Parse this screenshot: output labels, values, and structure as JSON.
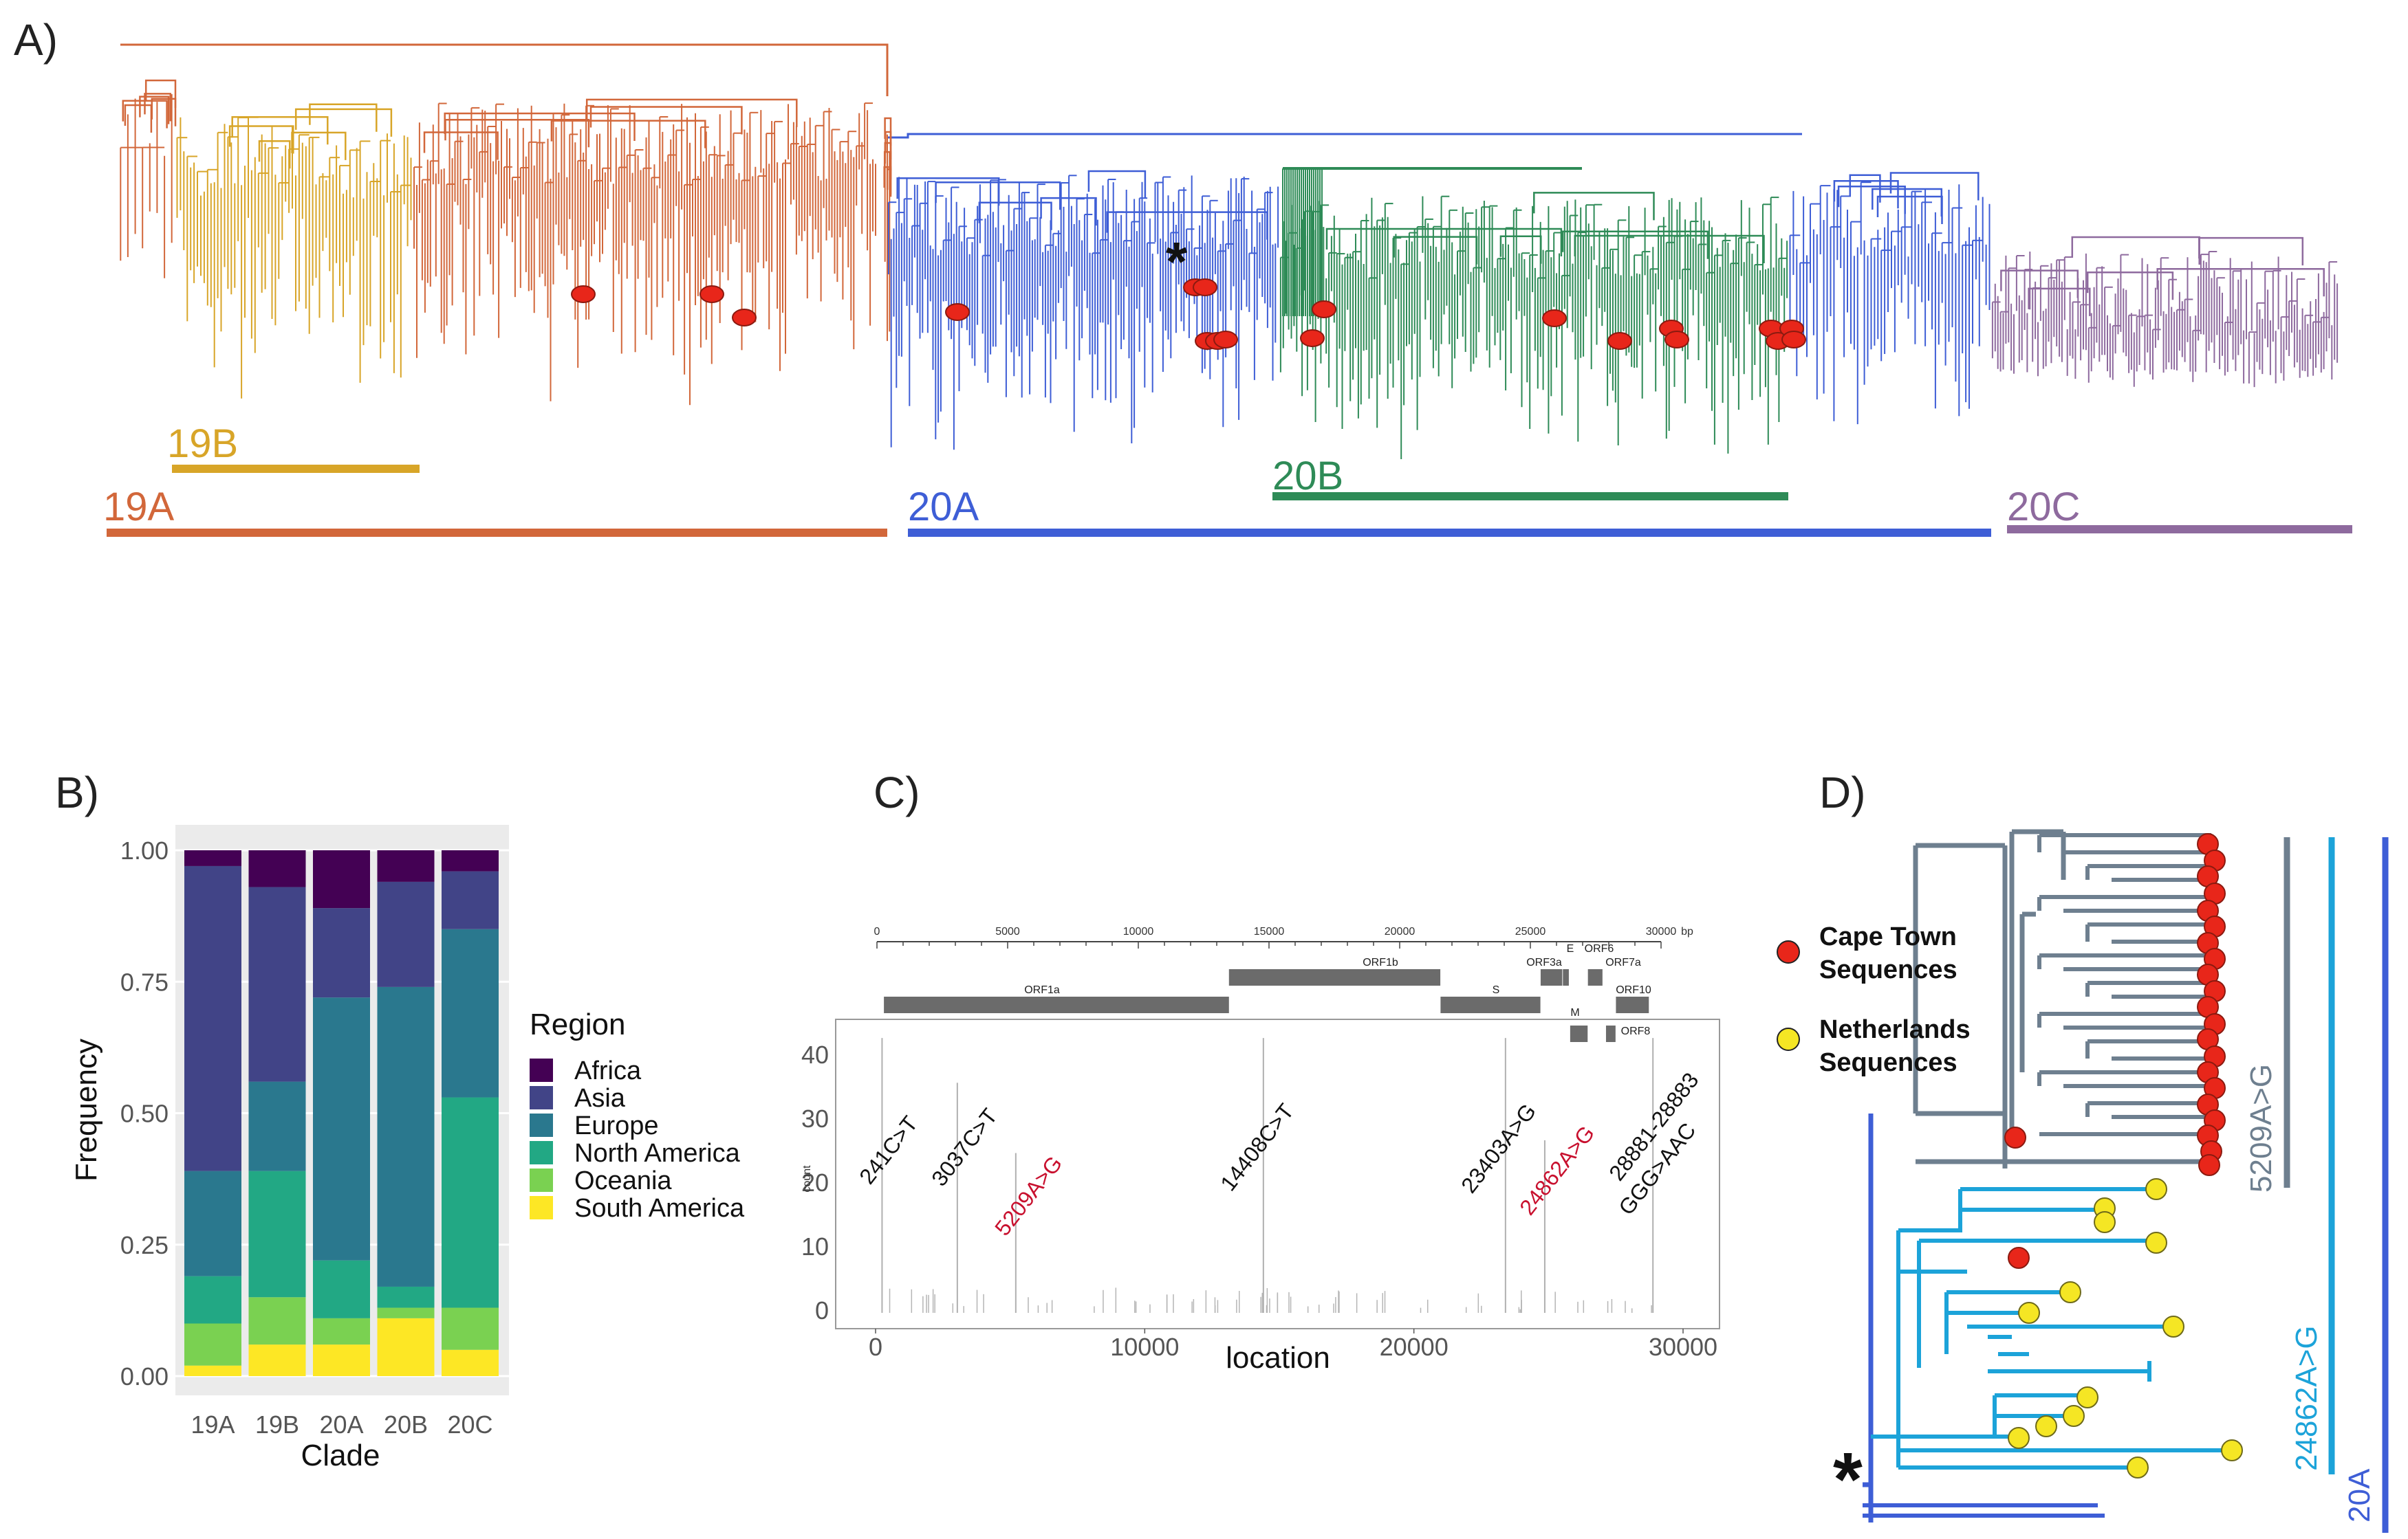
{
  "panels": {
    "a": "A)",
    "b": "B)",
    "c": "C)",
    "d": "D)"
  },
  "colors": {
    "c19A": "#D2673A",
    "c19B": "#D8A528",
    "c20A": "#3E5ED6",
    "c20B": "#2E8B57",
    "c20C": "#8E6A9E",
    "africa": "#440154",
    "asia": "#414487",
    "europe": "#2A788E",
    "north_america": "#22A884",
    "oceania": "#7AD151",
    "south_america": "#FDE725",
    "capetown": "#E8261A",
    "netherlands": "#F5E624",
    "grey": "#6E7F8F",
    "cyan": "#1CA3D9"
  },
  "panel_a": {
    "clades": [
      {
        "key": "19A",
        "label": "19A"
      },
      {
        "key": "19B",
        "label": "19B"
      },
      {
        "key": "20A",
        "label": "20A"
      },
      {
        "key": "20B",
        "label": "20B"
      },
      {
        "key": "20C",
        "label": "20C"
      }
    ],
    "asterisk": "*"
  },
  "chart_data": [
    {
      "type": "bar",
      "stacked": true,
      "categories": [
        "19A",
        "19B",
        "20A",
        "20B",
        "20C"
      ],
      "series": [
        {
          "name": "South America",
          "values": [
            0.02,
            0.06,
            0.06,
            0.11,
            0.05
          ]
        },
        {
          "name": "Oceania",
          "values": [
            0.08,
            0.09,
            0.05,
            0.02,
            0.08
          ]
        },
        {
          "name": "North America",
          "values": [
            0.09,
            0.24,
            0.11,
            0.04,
            0.4
          ]
        },
        {
          "name": "Europe",
          "values": [
            0.2,
            0.17,
            0.5,
            0.57,
            0.32
          ]
        },
        {
          "name": "Asia",
          "values": [
            0.58,
            0.37,
            0.17,
            0.2,
            0.11
          ]
        },
        {
          "name": "Africa",
          "values": [
            0.03,
            0.07,
            0.11,
            0.06,
            0.04
          ]
        }
      ],
      "xlabel": "Clade",
      "ylabel": "Frequency",
      "ylim": [
        0,
        1
      ],
      "yticks": [
        "0.00",
        "0.25",
        "0.50",
        "0.75",
        "1.00"
      ],
      "legend_title": "Region",
      "legend": [
        "Africa",
        "Asia",
        "Europe",
        "North America",
        "Oceania",
        "South America"
      ]
    },
    {
      "type": "bar",
      "title": "",
      "xlabel": "location",
      "ylabel": "count",
      "xlim": [
        0,
        30000
      ],
      "ylim": [
        0,
        45
      ],
      "xticks": [
        "0",
        "10000",
        "20000",
        "30000"
      ],
      "yticks": [
        "0",
        "10",
        "20",
        "30",
        "40"
      ],
      "peaks": [
        {
          "pos": 241,
          "count": 43,
          "label": "241C>T",
          "highlight": false
        },
        {
          "pos": 3037,
          "count": 36,
          "label": "3037C>T",
          "highlight": false
        },
        {
          "pos": 5209,
          "count": 25,
          "label": "5209A>G",
          "highlight": true
        },
        {
          "pos": 14408,
          "count": 43,
          "label": "14408C>T",
          "highlight": false
        },
        {
          "pos": 23403,
          "count": 43,
          "label": "23403A>G",
          "highlight": false
        },
        {
          "pos": 24862,
          "count": 27,
          "label": "24862A>G",
          "highlight": true
        },
        {
          "pos": 28881,
          "count": 43,
          "label": "28881-28883",
          "label2": "GGG>AAC",
          "highlight": false
        }
      ],
      "genome_axis": {
        "ticks": [
          "0",
          "5000",
          "10000",
          "15000",
          "20000",
          "25000",
          "30000"
        ],
        "unit": "bp",
        "genes": [
          "ORF1a",
          "ORF1b",
          "S",
          "ORF3a",
          "E",
          "M",
          "ORF6",
          "ORF7a",
          "ORF8",
          "ORF10"
        ]
      }
    }
  ],
  "panel_d": {
    "legend": [
      {
        "line1": "Cape Town",
        "line2": "Sequences"
      },
      {
        "line1": "Netherlands",
        "line2": "Sequences"
      }
    ],
    "bars": [
      "5209A>G",
      "24862A>G",
      "20A"
    ],
    "asterisk": "*"
  }
}
